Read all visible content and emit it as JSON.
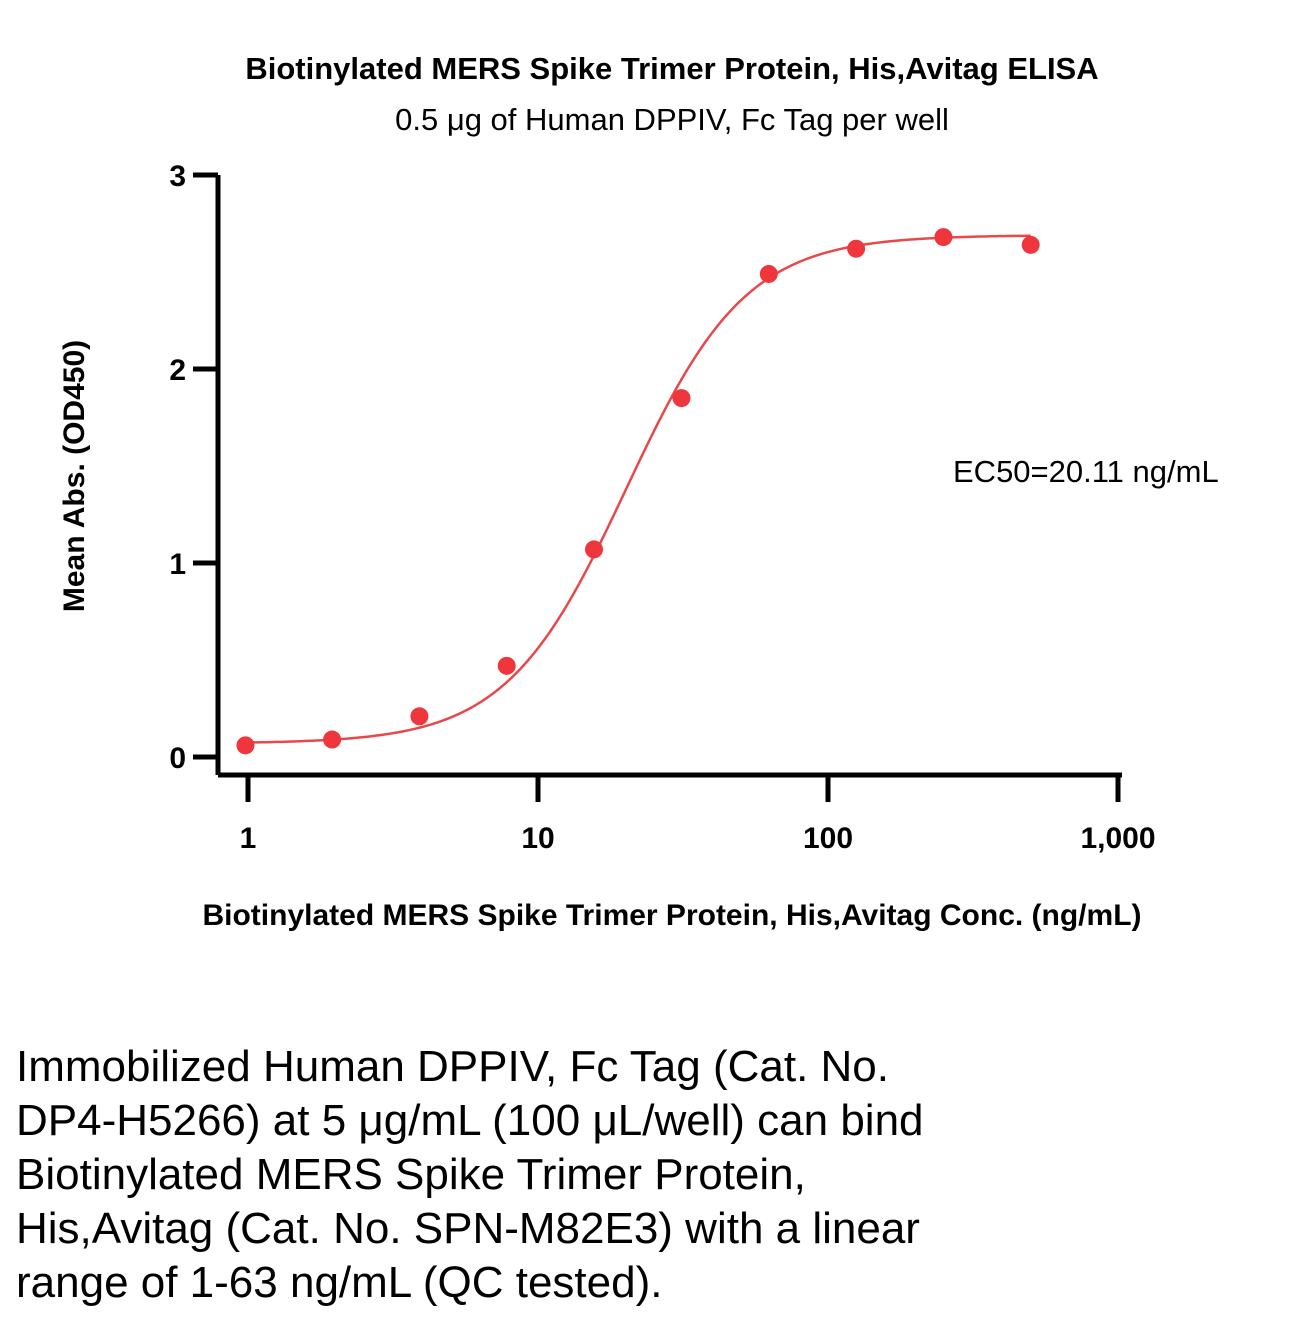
{
  "chart_data": {
    "type": "scatter",
    "title": "Biotinylated MERS Spike Trimer Protein, His,Avitag ELISA",
    "subtitle": "0.5 μg of Human DPPIV, Fc Tag per well",
    "xlabel": "Biotinylated MERS Spike Trimer Protein, His,Avitag Conc. (ng/mL)",
    "ylabel": "Mean Abs. (OD450)",
    "x_scale": "log",
    "xlim": [
      0.8,
      1000
    ],
    "ylim": [
      0,
      3
    ],
    "x_ticks": [
      1,
      10,
      100,
      1000
    ],
    "x_tick_labels": [
      "1",
      "10",
      "100",
      "1,000"
    ],
    "y_ticks": [
      0,
      1,
      2,
      3
    ],
    "y_tick_labels": [
      "0",
      "1",
      "2",
      "3"
    ],
    "series": [
      {
        "x": [
          0.98,
          1.95,
          3.9,
          7.8,
          15.6,
          31.25,
          62.5,
          125,
          250,
          500
        ],
        "y": [
          0.06,
          0.09,
          0.21,
          0.47,
          1.07,
          1.85,
          2.49,
          2.62,
          2.68,
          2.64
        ],
        "color": "#f0363d"
      }
    ],
    "fit_curve": {
      "model": "4PL",
      "bottom": 0.07,
      "top": 2.69,
      "ec50": 20.11,
      "hill": 2.1,
      "color": "#e8484a"
    },
    "annotations": [
      "EC50=20.11 ng/mL"
    ],
    "grid": false
  },
  "caption_lines": [
    "Immobilized Human DPPIV, Fc Tag (Cat. No.",
    "DP4-H5266) at 5 μg/mL (100 μL/well) can bind",
    "Biotinylated MERS Spike Trimer Protein,",
    "His,Avitag (Cat. No. SPN-M82E3) with a linear",
    "range of 1-63 ng/mL (QC tested)."
  ]
}
